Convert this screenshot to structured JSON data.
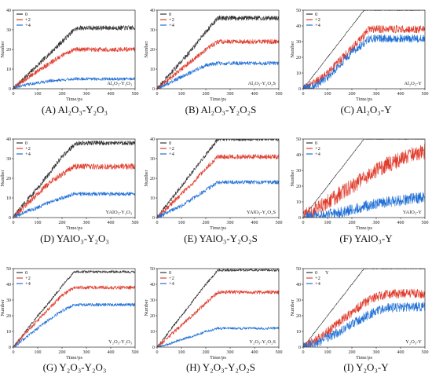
{
  "chart_data": [
    {
      "id": "A",
      "type": "line",
      "caption": "(A) Al₂O₃-Y₂O₃",
      "inner_label": "Al₂O₃-Y₂O₃",
      "xlabel": "Time/ps",
      "ylabel": "Number",
      "xlim": [
        0,
        500
      ],
      "ylim": [
        0,
        40
      ],
      "xticks": [
        0,
        100,
        200,
        300,
        400,
        500
      ],
      "yticks": [
        0,
        10,
        20,
        30,
        40
      ],
      "series": [
        {
          "name": "0",
          "color": "#333333",
          "x": [
            0,
            50,
            100,
            150,
            200,
            250,
            270,
            500
          ],
          "y": [
            0,
            6,
            12,
            18,
            24,
            30,
            31,
            31
          ],
          "noise": 1.2
        },
        {
          "name": "+2",
          "color": "#e03c2c",
          "x": [
            0,
            50,
            100,
            150,
            200,
            250,
            270,
            500
          ],
          "y": [
            0,
            5,
            9,
            13,
            17,
            20,
            20,
            20
          ],
          "noise": 1.2
        },
        {
          "name": "+4",
          "color": "#1f6fd6",
          "x": [
            0,
            20,
            50,
            100,
            150,
            200,
            250,
            500
          ],
          "y": [
            0,
            1,
            2,
            3,
            4,
            4.5,
            5,
            5
          ],
          "noise": 0.8
        }
      ]
    },
    {
      "id": "B",
      "type": "line",
      "caption": "(B) Al₂O₃-Y₂O₂S",
      "inner_label": "Al₂O₃-Y₂O₂S",
      "xlabel": "Time/ps",
      "ylabel": "Number",
      "xlim": [
        0,
        500
      ],
      "ylim": [
        0,
        40
      ],
      "xticks": [
        0,
        100,
        200,
        300,
        400,
        500
      ],
      "yticks": [
        0,
        10,
        20,
        30,
        40
      ],
      "series": [
        {
          "name": "0",
          "color": "#333333",
          "x": [
            0,
            50,
            100,
            150,
            200,
            250,
            500
          ],
          "y": [
            0,
            7,
            14,
            21,
            29,
            36,
            36
          ],
          "noise": 1.2
        },
        {
          "name": "+2",
          "color": "#e03c2c",
          "x": [
            0,
            50,
            100,
            150,
            200,
            250,
            500
          ],
          "y": [
            0,
            5,
            10,
            15,
            20,
            24,
            24
          ],
          "noise": 1.2
        },
        {
          "name": "+4",
          "color": "#1f6fd6",
          "x": [
            0,
            50,
            100,
            150,
            200,
            250,
            500
          ],
          "y": [
            0,
            3,
            6,
            9,
            12,
            13,
            13
          ],
          "noise": 1.0
        }
      ]
    },
    {
      "id": "C",
      "type": "line",
      "caption": "(C) Al₂O₃-Y",
      "inner_label": "Al₂O₃-Y",
      "xlabel": "Time/ps",
      "ylabel": "Number",
      "xlim": [
        0,
        500
      ],
      "ylim": [
        0,
        50
      ],
      "xticks": [
        0,
        100,
        200,
        300,
        400,
        500
      ],
      "yticks": [
        0,
        10,
        20,
        30,
        40,
        50
      ],
      "series": [
        {
          "name": "0",
          "color": "#333333",
          "x": [
            0,
            250,
            500
          ],
          "y": [
            0,
            50,
            50
          ],
          "noise": 0.3
        },
        {
          "name": "+2",
          "color": "#e03c2c",
          "x": [
            0,
            50,
            100,
            150,
            200,
            250,
            270,
            500
          ],
          "y": [
            0,
            4,
            10,
            18,
            26,
            34,
            38,
            38
          ],
          "noise": 2.5
        },
        {
          "name": "+4",
          "color": "#1f6fd6",
          "x": [
            0,
            50,
            100,
            150,
            200,
            250,
            270,
            500
          ],
          "y": [
            0,
            2,
            7,
            15,
            23,
            29,
            32,
            32
          ],
          "noise": 2.5
        }
      ]
    },
    {
      "id": "D",
      "type": "line",
      "caption": "(D) YAlO₃-Y₂O₃",
      "inner_label": "YAlO₃-Y₂O₃",
      "xlabel": "Time/ps",
      "ylabel": "Number",
      "xlim": [
        0,
        500
      ],
      "ylim": [
        0,
        40
      ],
      "xticks": [
        0,
        100,
        200,
        300,
        400,
        500
      ],
      "yticks": [
        0,
        10,
        20,
        30,
        40
      ],
      "series": [
        {
          "name": "0",
          "color": "#333333",
          "x": [
            0,
            50,
            100,
            150,
            200,
            250,
            270,
            500
          ],
          "y": [
            0,
            8,
            15,
            23,
            31,
            37,
            38,
            38
          ],
          "noise": 1.2
        },
        {
          "name": "+2",
          "color": "#e03c2c",
          "x": [
            0,
            50,
            100,
            150,
            200,
            250,
            500
          ],
          "y": [
            0,
            6,
            12,
            18,
            22,
            26,
            26
          ],
          "noise": 1.5
        },
        {
          "name": "+4",
          "color": "#1f6fd6",
          "x": [
            0,
            50,
            100,
            150,
            200,
            250,
            500
          ],
          "y": [
            0,
            3,
            5,
            8,
            10,
            12,
            12
          ],
          "noise": 1.0
        }
      ]
    },
    {
      "id": "E",
      "type": "line",
      "caption": "(E) YAlO₃-Y₂O₂S",
      "inner_label": "YAlO₃-Y₂O₂S",
      "xlabel": "Time/ps",
      "ylabel": "Number",
      "xlim": [
        0,
        500
      ],
      "ylim": [
        0,
        40
      ],
      "xticks": [
        0,
        100,
        200,
        300,
        400,
        500
      ],
      "yticks": [
        0,
        10,
        20,
        30,
        40
      ],
      "series": [
        {
          "name": "0",
          "color": "#333333",
          "x": [
            0,
            50,
            100,
            150,
            200,
            250,
            500
          ],
          "y": [
            0,
            8,
            16,
            24,
            32,
            40,
            40
          ],
          "noise": 1.0
        },
        {
          "name": "+2",
          "color": "#e03c2c",
          "x": [
            0,
            50,
            100,
            150,
            200,
            250,
            500
          ],
          "y": [
            0,
            6,
            12,
            18,
            25,
            31,
            31
          ],
          "noise": 1.2
        },
        {
          "name": "+4",
          "color": "#1f6fd6",
          "x": [
            0,
            50,
            100,
            150,
            200,
            250,
            500
          ],
          "y": [
            0,
            3,
            6,
            10,
            14,
            18,
            18
          ],
          "noise": 1.0
        }
      ]
    },
    {
      "id": "F",
      "type": "line",
      "caption": "(F) YAlO₃-Y",
      "inner_label": "YAlO₃-Y",
      "xlabel": "Time/ps",
      "ylabel": "Number",
      "xlim": [
        0,
        500
      ],
      "ylim": [
        0,
        50
      ],
      "xticks": [
        0,
        100,
        200,
        300,
        400,
        500
      ],
      "yticks": [
        0,
        10,
        20,
        30,
        40,
        50
      ],
      "series": [
        {
          "name": "0",
          "color": "#333333",
          "x": [
            0,
            250,
            500
          ],
          "y": [
            0,
            50,
            50
          ],
          "noise": 0.3
        },
        {
          "name": "+2",
          "color": "#e03c2c",
          "x": [
            0,
            50,
            100,
            150,
            200,
            250,
            300,
            350,
            400,
            450,
            500
          ],
          "y": [
            0,
            5,
            10,
            15,
            20,
            25,
            30,
            34,
            37,
            40,
            42
          ],
          "noise": 5.0
        },
        {
          "name": "+4",
          "color": "#1f6fd6",
          "x": [
            0,
            50,
            100,
            150,
            200,
            250,
            300,
            350,
            400,
            450,
            500
          ],
          "y": [
            0,
            1,
            2,
            3,
            5,
            7,
            9,
            10,
            11,
            12,
            13
          ],
          "noise": 3.5
        }
      ]
    },
    {
      "id": "G",
      "type": "line",
      "caption": "(G) Y₂O₃-Y₂O₃",
      "inner_label": "Y₂O₃-Y₂O₃",
      "xlabel": "Time/ps",
      "ylabel": "Number",
      "xlim": [
        0,
        500
      ],
      "ylim": [
        0,
        50
      ],
      "xticks": [
        0,
        100,
        200,
        300,
        400,
        500
      ],
      "yticks": [
        0,
        10,
        20,
        30,
        40,
        50
      ],
      "series": [
        {
          "name": "0",
          "color": "#333333",
          "x": [
            0,
            50,
            100,
            150,
            200,
            250,
            500
          ],
          "y": [
            0,
            10,
            20,
            29,
            39,
            48,
            48
          ],
          "noise": 0.8
        },
        {
          "name": "+2",
          "color": "#e03c2c",
          "x": [
            0,
            50,
            100,
            150,
            200,
            250,
            500
          ],
          "y": [
            0,
            9,
            17,
            25,
            33,
            38,
            38
          ],
          "noise": 1.2
        },
        {
          "name": "+4",
          "color": "#1f6fd6",
          "x": [
            0,
            50,
            100,
            150,
            200,
            250,
            500
          ],
          "y": [
            0,
            6,
            12,
            18,
            23,
            27,
            27
          ],
          "noise": 1.0
        }
      ]
    },
    {
      "id": "H",
      "type": "line",
      "caption": "(H) Y₂O₃-Y₂O₂S",
      "inner_label": "Y₂O₃-Y₂O₂S",
      "xlabel": "Time/ps",
      "ylabel": "Number",
      "xlim": [
        0,
        500
      ],
      "ylim": [
        0,
        50
      ],
      "xticks": [
        0,
        100,
        200,
        300,
        400,
        500
      ],
      "yticks": [
        0,
        10,
        20,
        30,
        40,
        50
      ],
      "series": [
        {
          "name": "0",
          "color": "#333333",
          "x": [
            0,
            50,
            100,
            150,
            200,
            250,
            500
          ],
          "y": [
            0,
            10,
            20,
            30,
            40,
            49,
            49
          ],
          "noise": 0.8
        },
        {
          "name": "+2",
          "color": "#e03c2c",
          "x": [
            0,
            50,
            100,
            150,
            200,
            250,
            500
          ],
          "y": [
            0,
            7,
            14,
            21,
            28,
            35,
            35
          ],
          "noise": 1.2
        },
        {
          "name": "+4",
          "color": "#1f6fd6",
          "x": [
            0,
            50,
            100,
            150,
            200,
            250,
            500
          ],
          "y": [
            0,
            2,
            5,
            7,
            10,
            12,
            12
          ],
          "noise": 0.8
        }
      ]
    },
    {
      "id": "I",
      "type": "line",
      "caption": "(I) Y₂O₃-Y",
      "inner_label": "Y₂O₃-Y",
      "xlabel": "Time/ps",
      "ylabel": "Number",
      "xlim": [
        0,
        500
      ],
      "ylim": [
        0,
        50
      ],
      "xticks": [
        0,
        100,
        200,
        300,
        400,
        500
      ],
      "yticks": [
        0,
        10,
        20,
        30,
        40,
        50
      ],
      "legend_extra": "Y",
      "series": [
        {
          "name": "0",
          "color": "#333333",
          "x": [
            0,
            250,
            500
          ],
          "y": [
            0,
            50,
            50
          ],
          "noise": 0.3
        },
        {
          "name": "+2",
          "color": "#e03c2c",
          "x": [
            0,
            50,
            100,
            150,
            200,
            250,
            300,
            350,
            500
          ],
          "y": [
            0,
            4,
            10,
            16,
            22,
            28,
            32,
            34,
            34
          ],
          "noise": 3.0
        },
        {
          "name": "+4",
          "color": "#1f6fd6",
          "x": [
            0,
            50,
            100,
            150,
            200,
            250,
            300,
            350,
            500
          ],
          "y": [
            0,
            2,
            6,
            10,
            15,
            19,
            23,
            25,
            26
          ],
          "noise": 3.0
        }
      ]
    }
  ]
}
